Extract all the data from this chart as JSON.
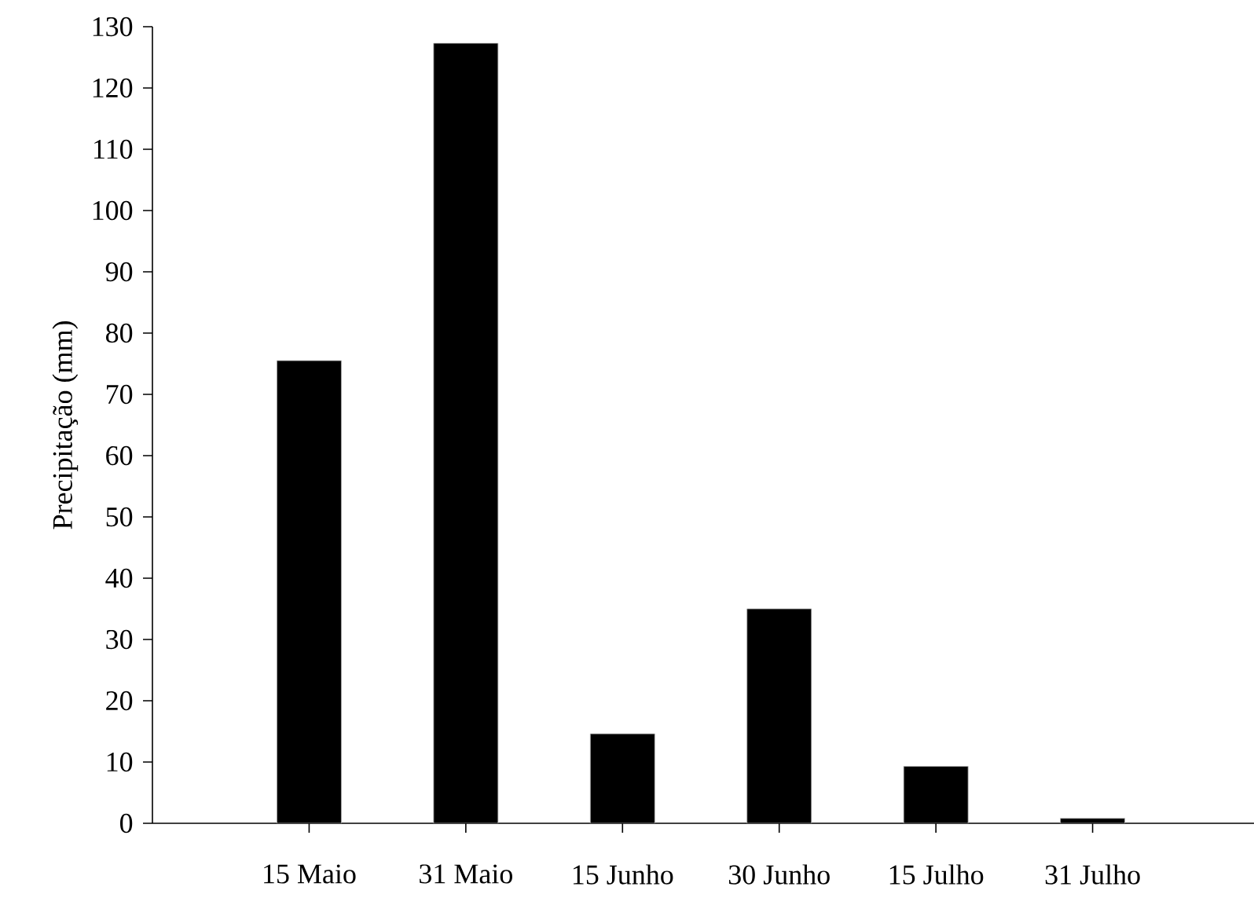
{
  "chart_data": {
    "type": "bar",
    "ylabel": "Precipitação (mm)",
    "categories": [
      "15 Maio",
      "31 Maio",
      "15 Junho",
      "30 Junho",
      "15 Julho",
      "31 Julho"
    ],
    "values": [
      75.5,
      127.3,
      14.6,
      35,
      9.3,
      0.8
    ],
    "color": "#000000",
    "ylim": [
      0,
      130
    ],
    "yticks": [
      0,
      10,
      20,
      30,
      40,
      50,
      60,
      70,
      80,
      90,
      100,
      110,
      120,
      130
    ],
    "grid": false
  }
}
